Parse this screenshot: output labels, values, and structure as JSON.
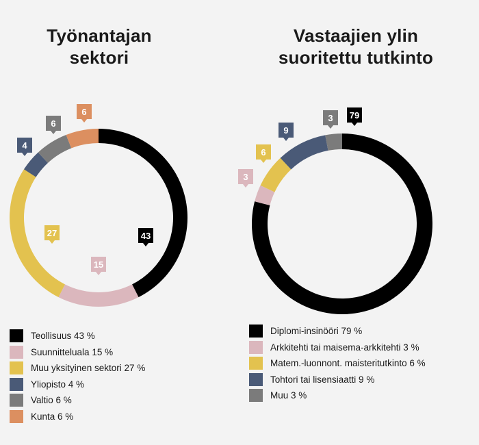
{
  "chart_data": [
    {
      "type": "pie",
      "title": "Työnantajan sektori",
      "title_lines": [
        "Työnantajan",
        "sektori"
      ],
      "slices": [
        {
          "name": "Teollisuus",
          "value": 43,
          "label": "43",
          "legend": "Teollisuus 43 %",
          "color": "#000000"
        },
        {
          "name": "Suunnitteluala",
          "value": 15,
          "label": "15",
          "legend": "Suunnitteluala 15 %",
          "color": "#dbb7bd"
        },
        {
          "name": "Muu yksityinen sektori",
          "value": 27,
          "label": "27",
          "legend": "Muu yksityinen sektori 27 %",
          "color": "#e3c24f"
        },
        {
          "name": "Yliopisto",
          "value": 4,
          "label": "4",
          "legend": "Yliopisto 4 %",
          "color": "#4a5a77"
        },
        {
          "name": "Valtio",
          "value": 6,
          "label": "6",
          "legend": "Valtio 6 %",
          "color": "#7b7b7b"
        },
        {
          "name": "Kunta",
          "value": 6,
          "label": "6",
          "legend": "Kunta 6 %",
          "color": "#dc8f60"
        }
      ]
    },
    {
      "type": "pie",
      "title": "Vastaajien ylin suoritettu tutkinto",
      "title_lines": [
        "Vastaajien ylin",
        "suoritettu tutkinto"
      ],
      "slices": [
        {
          "name": "Diplomi-insinööri",
          "value": 79,
          "label": "79",
          "legend": "Diplomi-insinööri 79 %",
          "color": "#000000"
        },
        {
          "name": "Arkkitehti tai maisema-arkkitehti",
          "value": 3,
          "label": "3",
          "legend": "Arkkitehti tai maisema-arkkitehti 3 %",
          "color": "#dbb7bd"
        },
        {
          "name": "Matem.-luonnont. maisteritutkinto",
          "value": 6,
          "label": "6",
          "legend": "Matem.-luonnont. maisteritutkinto 6 %",
          "color": "#e3c24f"
        },
        {
          "name": "Tohtori tai lisensiaatti",
          "value": 9,
          "label": "9",
          "legend": "Tohtori tai lisensiaatti 9 %",
          "color": "#4a5a77"
        },
        {
          "name": "Muu",
          "value": 3,
          "label": "3",
          "legend": "Muu 3 %",
          "color": "#7b7b7b"
        }
      ]
    }
  ]
}
